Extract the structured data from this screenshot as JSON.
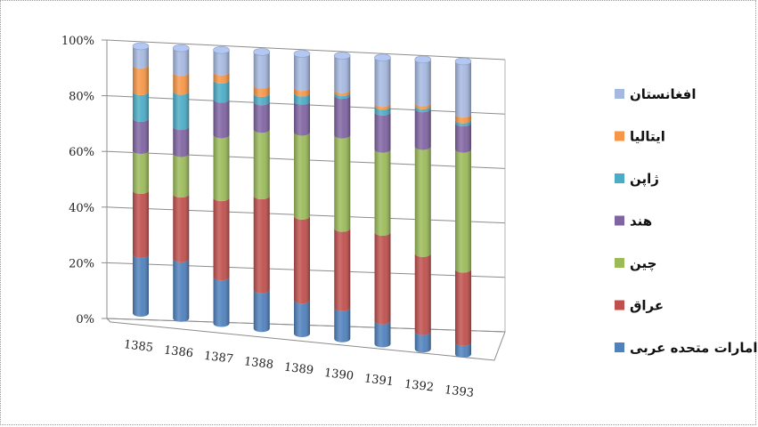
{
  "chart_data": {
    "type": "bar",
    "stacked": true,
    "percent": true,
    "three_d": true,
    "categories": [
      "1385",
      "1386",
      "1387",
      "1388",
      "1389",
      "1390",
      "1391",
      "1392",
      "1393"
    ],
    "y_ticks": [
      "0%",
      "20%",
      "40%",
      "60%",
      "80%",
      "100%"
    ],
    "ylim": [
      0,
      100
    ],
    "grid": true,
    "legend_position": "right",
    "series": [
      {
        "name": "امارات متحده عربی",
        "color": "#4F81BD",
        "values": [
          22,
          22,
          17,
          14,
          12,
          11,
          8,
          6,
          4
        ]
      },
      {
        "name": "عراق",
        "color": "#C0504D",
        "values": [
          24,
          24,
          29,
          34,
          30,
          28,
          31,
          27,
          25
        ]
      },
      {
        "name": "چین",
        "color": "#9BBB59",
        "values": [
          15,
          15,
          23,
          24,
          30,
          33,
          29,
          37,
          41
        ]
      },
      {
        "name": "هند",
        "color": "#8064A2",
        "values": [
          12,
          10,
          13,
          10,
          11,
          14,
          13,
          13,
          9
        ]
      },
      {
        "name": "ژاپن",
        "color": "#4BACC6",
        "values": [
          10,
          13,
          7,
          3,
          3,
          1,
          2,
          1,
          1
        ]
      },
      {
        "name": "ایتالیا",
        "color": "#F79646",
        "values": [
          10,
          7,
          3,
          3,
          2,
          1,
          1,
          1,
          2
        ]
      },
      {
        "name": "افغانستان",
        "color": "#A5B8E0",
        "values": [
          7,
          9,
          8,
          12,
          12,
          12,
          16,
          15,
          18
        ]
      }
    ]
  }
}
